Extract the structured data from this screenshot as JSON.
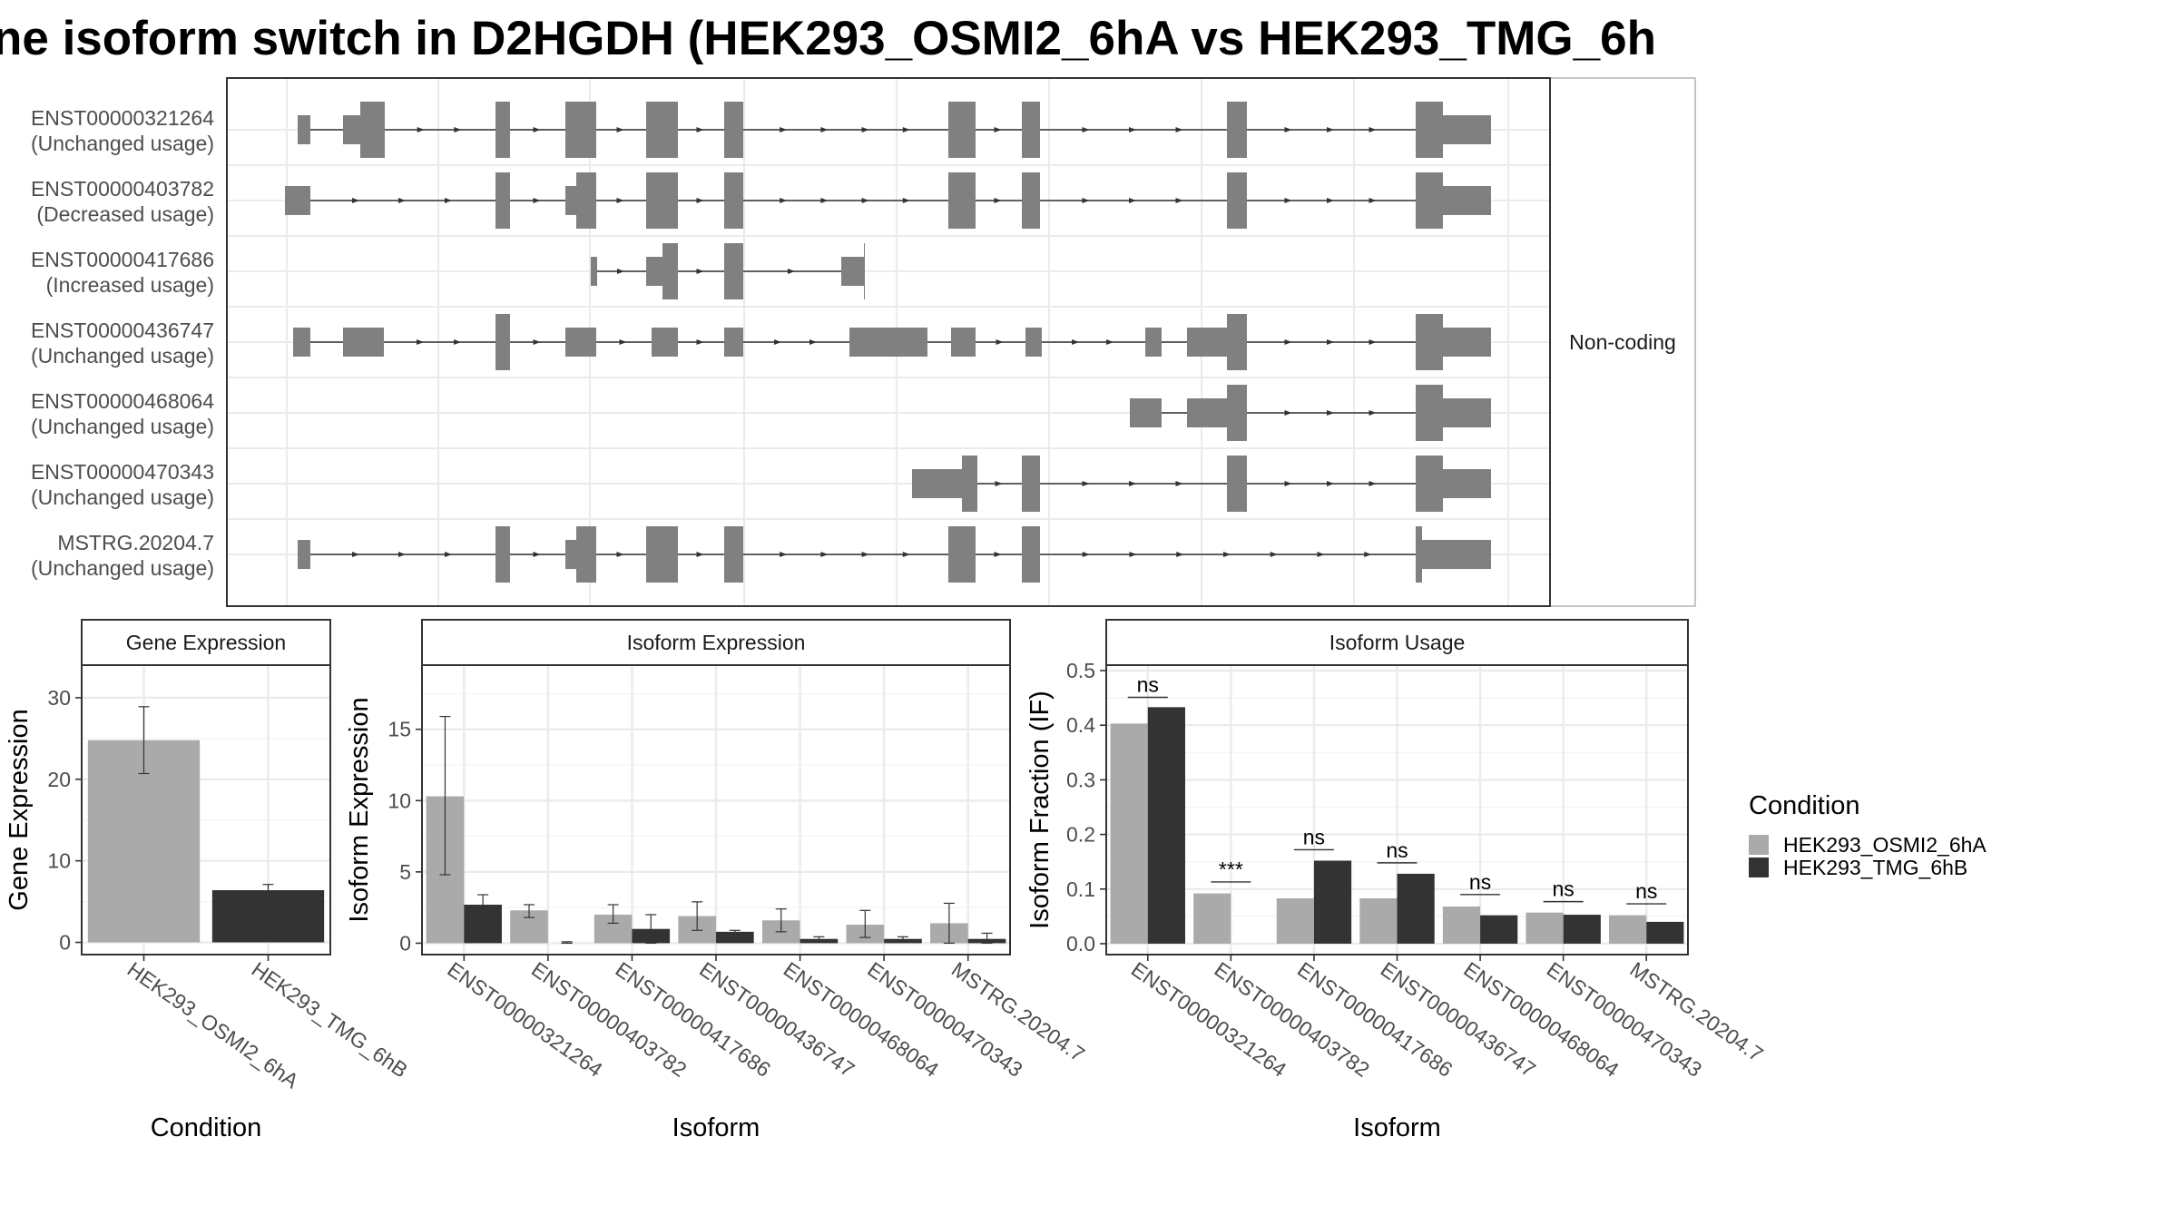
{
  "title": "ne isoform switch in D2HGDH (HEK293_OSMI2_6hA vs HEK293_TMG_6h",
  "colors": {
    "cond_a": "#aaaaaa",
    "cond_b": "#333333",
    "exon": "#808080",
    "grid": "#ebebeb",
    "strip_bg": "#ffffff",
    "frame": "#333333"
  },
  "structure": {
    "facet_label": "Non-coding",
    "isoforms": [
      {
        "id": "ENST00000321264",
        "status": "(Unchanged usage)"
      },
      {
        "id": "ENST00000403782",
        "status": "(Decreased usage)"
      },
      {
        "id": "ENST00000417686",
        "status": "(Increased usage)"
      },
      {
        "id": "ENST00000436747",
        "status": "(Unchanged usage)"
      },
      {
        "id": "ENST00000468064",
        "status": "(Unchanged usage)"
      },
      {
        "id": "ENST00000470343",
        "status": "(Unchanged usage)"
      },
      {
        "id": "MSTRG.20204.7",
        "status": "(Unchanged usage)"
      }
    ]
  },
  "legend": {
    "title": "Condition",
    "items": [
      "HEK293_OSMI2_6hA",
      "HEK293_TMG_6hB"
    ]
  },
  "chart_data": [
    {
      "type": "bar",
      "panel": "Gene Expression",
      "xlabel": "Condition",
      "ylabel": "Gene Expression",
      "ylim": [
        -1.5,
        34
      ],
      "yticks": [
        0,
        10,
        20,
        30
      ],
      "categories": [
        "HEK293_OSMI2_6hA",
        "HEK293_TMG_6hB"
      ],
      "values": [
        24.8,
        6.4
      ],
      "err_low": [
        20.7,
        5.7
      ],
      "err_high": [
        28.9,
        7.1
      ]
    },
    {
      "type": "bar",
      "panel": "Isoform Expression",
      "xlabel": "Isoform",
      "ylabel": "Isoform Expression",
      "ylim": [
        -0.8,
        19.5
      ],
      "yticks": [
        0,
        5,
        10,
        15
      ],
      "categories": [
        "ENST00000321264",
        "ENST00000403782",
        "ENST00000417686",
        "ENST00000436747",
        "ENST00000468064",
        "ENST00000470343",
        "MSTRG.20204.7"
      ],
      "series": [
        {
          "name": "HEK293_OSMI2_6hA",
          "values": [
            10.3,
            2.3,
            2.0,
            1.9,
            1.6,
            1.3,
            1.4
          ],
          "err_low": [
            4.8,
            1.8,
            1.4,
            0.9,
            0.8,
            0.4,
            0.0
          ],
          "err_high": [
            15.9,
            2.7,
            2.7,
            2.9,
            2.4,
            2.3,
            2.8
          ]
        },
        {
          "name": "HEK293_TMG_6hB",
          "values": [
            2.7,
            0.0,
            1.0,
            0.8,
            0.3,
            0.3,
            0.3
          ],
          "err_low": [
            2.1,
            0.0,
            0.0,
            0.7,
            0.2,
            0.2,
            0.0
          ],
          "err_high": [
            3.4,
            0.1,
            2.0,
            0.9,
            0.45,
            0.45,
            0.7
          ]
        }
      ]
    },
    {
      "type": "bar",
      "panel": "Isoform Usage",
      "xlabel": "Isoform",
      "ylabel": "Isoform Fraction (IF)",
      "ylim": [
        -0.02,
        0.51
      ],
      "yticks": [
        0.0,
        0.1,
        0.2,
        0.3,
        0.4,
        0.5
      ],
      "ytick_labels": [
        "0.0",
        "0.1",
        "0.2",
        "0.3",
        "0.4",
        "0.5"
      ],
      "categories": [
        "ENST00000321264",
        "ENST00000403782",
        "ENST00000417686",
        "ENST00000436747",
        "ENST00000468064",
        "ENST00000470343",
        "MSTRG.20204.7"
      ],
      "series": [
        {
          "name": "HEK293_OSMI2_6hA",
          "values": [
            0.403,
            0.092,
            0.083,
            0.083,
            0.068,
            0.057,
            0.052
          ]
        },
        {
          "name": "HEK293_TMG_6hB",
          "values": [
            0.433,
            0.0,
            0.152,
            0.128,
            0.052,
            0.053,
            0.04
          ]
        }
      ],
      "significance": [
        "ns",
        "***",
        "ns",
        "ns",
        "ns",
        "ns",
        "ns"
      ],
      "sig_line_y": [
        0.451,
        0.113,
        0.172,
        0.148,
        0.09,
        0.077,
        0.073
      ]
    }
  ]
}
